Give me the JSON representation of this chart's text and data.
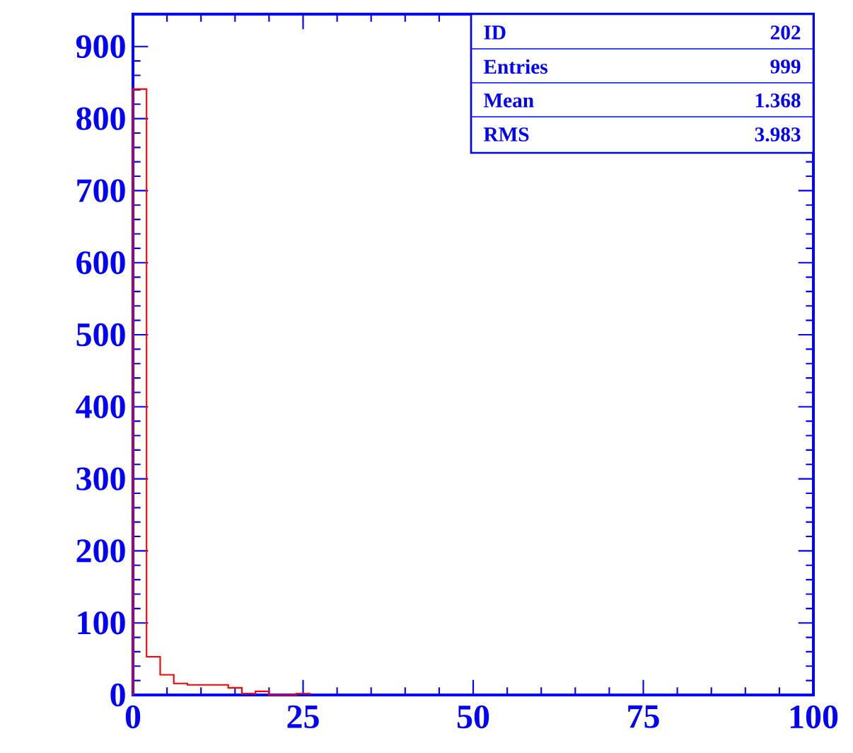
{
  "chart_data": {
    "type": "histogram",
    "bins": [
      0,
      2,
      4,
      6,
      8,
      10,
      12,
      14,
      16,
      18,
      20,
      22,
      24,
      26
    ],
    "values": [
      841,
      53,
      28,
      16,
      14,
      14,
      14,
      10,
      2,
      5,
      0,
      0,
      2
    ],
    "color": "#ff0000",
    "xlim": [
      0,
      100
    ],
    "xticks": [
      0,
      25,
      50,
      75,
      100
    ],
    "ylim": [
      0,
      945
    ],
    "yticks": [
      0,
      100,
      200,
      300,
      400,
      500,
      600,
      700,
      800,
      900
    ],
    "annotations": [
      "ID",
      "202",
      "Entries",
      "999",
      "Mean",
      "1.368",
      "RMS",
      "3.983"
    ]
  }
}
